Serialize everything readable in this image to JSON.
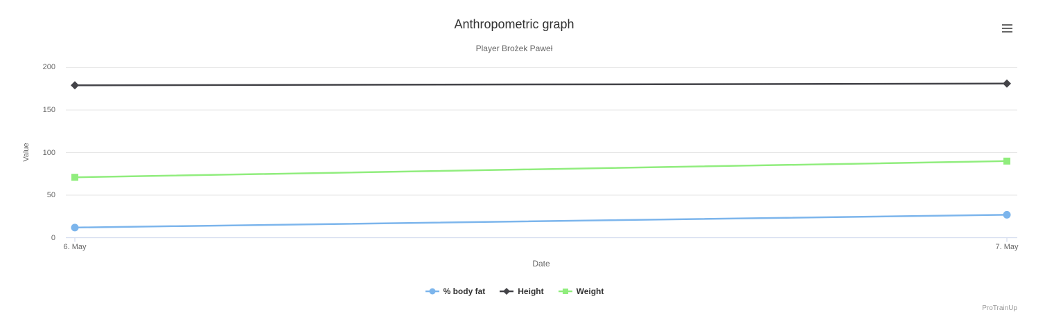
{
  "chart_data": {
    "type": "line",
    "title": "Anthropometric graph",
    "subtitle": "Player Brożek Paweł",
    "xlabel": "Date",
    "ylabel": "Value",
    "categories": [
      "6. May",
      "7. May"
    ],
    "series": [
      {
        "name": "% body fat",
        "values": [
          12,
          27
        ],
        "color": "#7cb5ec",
        "marker": "circle"
      },
      {
        "name": "Height",
        "values": [
          179,
          181
        ],
        "color": "#434348",
        "marker": "diamond"
      },
      {
        "name": "Weight",
        "values": [
          71,
          90
        ],
        "color": "#90ed7d",
        "marker": "square"
      }
    ],
    "ylim": [
      0,
      200
    ],
    "yticks": [
      0,
      50,
      100,
      150,
      200
    ],
    "grid": true,
    "legend_position": "bottom-center",
    "axis_line_color": "#ccd6eb",
    "grid_color": "#e6e6e6"
  },
  "credits": "ProTrainUp",
  "menu": {
    "icon": "hamburger-icon"
  }
}
